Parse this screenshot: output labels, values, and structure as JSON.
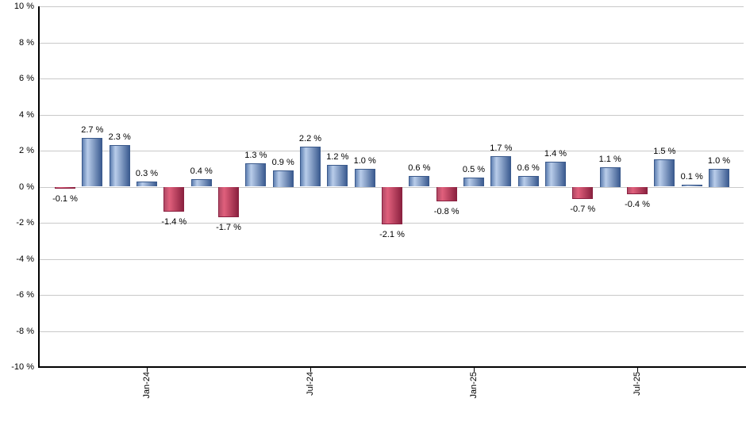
{
  "chart_data": {
    "type": "bar",
    "title": "",
    "unit": "%",
    "values": [
      -0.1,
      2.7,
      2.3,
      0.3,
      -1.4,
      0.4,
      -1.7,
      1.3,
      0.9,
      2.2,
      1.2,
      1.0,
      -2.1,
      0.6,
      -0.8,
      0.5,
      1.7,
      0.6,
      1.4,
      -0.7,
      1.1,
      -0.4,
      1.5,
      0.1,
      1.0
    ],
    "value_labels": [
      "-0.1 %",
      "2.7 %",
      "2.3 %",
      "0.3 %",
      "-1.4 %",
      "0.4 %",
      "-1.7 %",
      "1.3 %",
      "0.9 %",
      "2.2 %",
      "1.2 %",
      "1.0 %",
      "-2.1 %",
      "0.6 %",
      "-0.8 %",
      "0.5 %",
      "1.7 %",
      "0.6 %",
      "1.4 %",
      "-0.7 %",
      "1.1 %",
      "-0.4 %",
      "1.5 %",
      "0.1 %",
      "1.0 %"
    ],
    "x_ticks": [
      {
        "index": 3,
        "label": "Jan-24"
      },
      {
        "index": 9,
        "label": "Jul-24"
      },
      {
        "index": 15,
        "label": "Jan-25"
      },
      {
        "index": 21,
        "label": "Jul-25"
      }
    ],
    "y_ticks": [
      {
        "value": 10,
        "label": "10 %"
      },
      {
        "value": 8,
        "label": "8 %"
      },
      {
        "value": 6,
        "label": "6 %"
      },
      {
        "value": 4,
        "label": "4 %"
      },
      {
        "value": 2,
        "label": "2 %"
      },
      {
        "value": 0,
        "label": "0 %"
      },
      {
        "value": -2,
        "label": "-2 %"
      },
      {
        "value": -4,
        "label": "-4 %"
      },
      {
        "value": -6,
        "label": "-6 %"
      },
      {
        "value": -8,
        "label": "-8 %"
      },
      {
        "value": -10,
        "label": "-10 %"
      }
    ],
    "ylim": [
      -10,
      10
    ],
    "grid": true,
    "legend": "none",
    "colors": {
      "positive_bar_gradient": [
        "#6080b2",
        "#b9cdea",
        "#3c5c91"
      ],
      "negative_bar_gradient": [
        "#b14a66",
        "#e0607c",
        "#8c2240"
      ],
      "positive_bar_border": "#3b5a8c",
      "negative_bar_border": "#8a2040",
      "gridline": "#c9c9c9",
      "axis": "#000000",
      "text": "#000000",
      "background": "#ffffff"
    }
  }
}
